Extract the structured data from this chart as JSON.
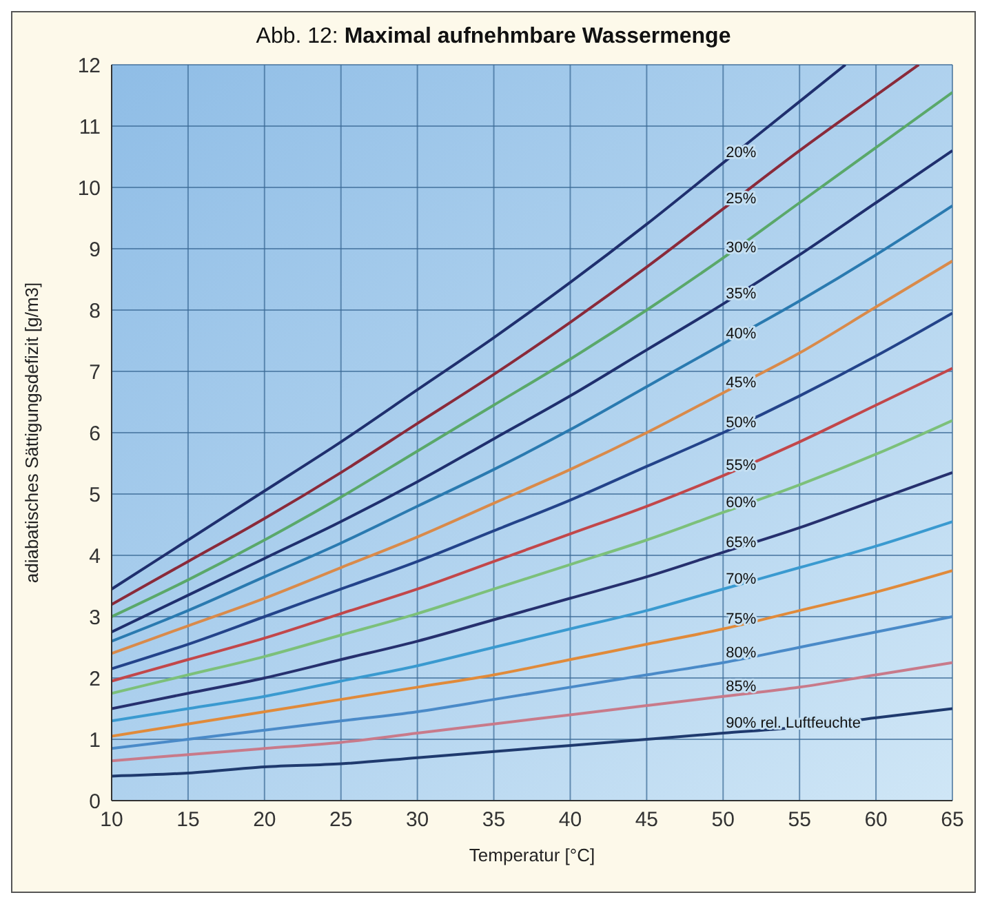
{
  "chart_data": {
    "type": "line",
    "title": "Abb. 12: Maximal aufnehmbare Wassermenge",
    "xlabel": "Temperatur [°C]",
    "ylabel": "adiabatisches Sättigungsdefizit [g/m3]",
    "x": [
      10,
      15,
      20,
      25,
      30,
      35,
      40,
      45,
      50,
      55,
      60,
      65
    ],
    "xlim": [
      10,
      65
    ],
    "xticks": [
      10,
      15,
      20,
      25,
      30,
      35,
      40,
      45,
      50,
      55,
      60,
      65
    ],
    "ylim": [
      0,
      12
    ],
    "yticks": [
      0,
      1,
      2,
      3,
      4,
      5,
      6,
      7,
      8,
      9,
      10,
      11,
      12
    ],
    "grid": true,
    "legend": false,
    "marker": "none",
    "line_style": "solid",
    "series": [
      {
        "name": "20%",
        "color": "#1f2f6e",
        "x": [
          10,
          15,
          20,
          25,
          30,
          35,
          40,
          45,
          50,
          55,
          58
        ],
        "values": [
          3.45,
          4.25,
          5.05,
          5.85,
          6.7,
          7.55,
          8.45,
          9.4,
          10.4,
          11.4,
          12
        ]
      },
      {
        "name": "25%",
        "color": "#8a2a3a",
        "x": [
          10,
          15,
          20,
          25,
          30,
          35,
          40,
          45,
          50,
          55,
          60,
          62.8
        ],
        "values": [
          3.2,
          3.9,
          4.6,
          5.35,
          6.15,
          6.95,
          7.8,
          8.7,
          9.65,
          10.6,
          11.5,
          12
        ]
      },
      {
        "name": "30%",
        "color": "#5aa86a",
        "values": [
          3.0,
          3.6,
          4.25,
          4.95,
          5.7,
          6.45,
          7.2,
          8.0,
          8.85,
          9.75,
          10.65,
          11.55
        ]
      },
      {
        "name": "35%",
        "color": "#1f2f6e",
        "values": [
          2.75,
          3.35,
          3.95,
          4.55,
          5.2,
          5.9,
          6.6,
          7.35,
          8.1,
          8.9,
          9.75,
          10.6
        ]
      },
      {
        "name": "40%",
        "color": "#2a7ab0",
        "values": [
          2.6,
          3.1,
          3.65,
          4.2,
          4.8,
          5.4,
          6.05,
          6.75,
          7.45,
          8.15,
          8.9,
          9.7
        ]
      },
      {
        "name": "45%",
        "color": "#d98a4a",
        "values": [
          2.4,
          2.85,
          3.3,
          3.8,
          4.3,
          4.85,
          5.4,
          6.0,
          6.65,
          7.3,
          8.05,
          8.8
        ]
      },
      {
        "name": "50%",
        "color": "#23438a",
        "values": [
          2.15,
          2.55,
          3.0,
          3.45,
          3.9,
          4.4,
          4.9,
          5.45,
          6.0,
          6.6,
          7.25,
          7.95
        ]
      },
      {
        "name": "55%",
        "color": "#c2474a",
        "values": [
          1.95,
          2.3,
          2.65,
          3.05,
          3.45,
          3.9,
          4.35,
          4.8,
          5.3,
          5.85,
          6.45,
          7.05
        ]
      },
      {
        "name": "60%",
        "color": "#7cc07a",
        "values": [
          1.75,
          2.05,
          2.35,
          2.7,
          3.05,
          3.45,
          3.85,
          4.25,
          4.7,
          5.15,
          5.65,
          6.2
        ]
      },
      {
        "name": "65%",
        "color": "#26306e",
        "values": [
          1.5,
          1.75,
          2.0,
          2.3,
          2.6,
          2.95,
          3.3,
          3.65,
          4.05,
          4.45,
          4.9,
          5.35
        ]
      },
      {
        "name": "70%",
        "color": "#3a9ad0",
        "values": [
          1.3,
          1.5,
          1.7,
          1.95,
          2.2,
          2.5,
          2.8,
          3.1,
          3.45,
          3.8,
          4.15,
          4.55
        ]
      },
      {
        "name": "75%",
        "color": "#e08a3a",
        "values": [
          1.05,
          1.25,
          1.45,
          1.65,
          1.85,
          2.05,
          2.3,
          2.55,
          2.8,
          3.1,
          3.4,
          3.75
        ]
      },
      {
        "name": "80%",
        "color": "#4a8ac8",
        "values": [
          0.85,
          1.0,
          1.15,
          1.3,
          1.45,
          1.65,
          1.85,
          2.05,
          2.25,
          2.5,
          2.75,
          3.0
        ]
      },
      {
        "name": "85%",
        "color": "#c87a8a",
        "values": [
          0.65,
          0.75,
          0.85,
          0.95,
          1.1,
          1.25,
          1.4,
          1.55,
          1.7,
          1.85,
          2.05,
          2.25
        ]
      },
      {
        "name": "90% rel. Luftfeuchte",
        "color": "#1f3a6e",
        "values": [
          0.4,
          0.45,
          0.55,
          0.6,
          0.7,
          0.8,
          0.9,
          1.0,
          1.1,
          1.2,
          1.35,
          1.5
        ]
      }
    ]
  }
}
